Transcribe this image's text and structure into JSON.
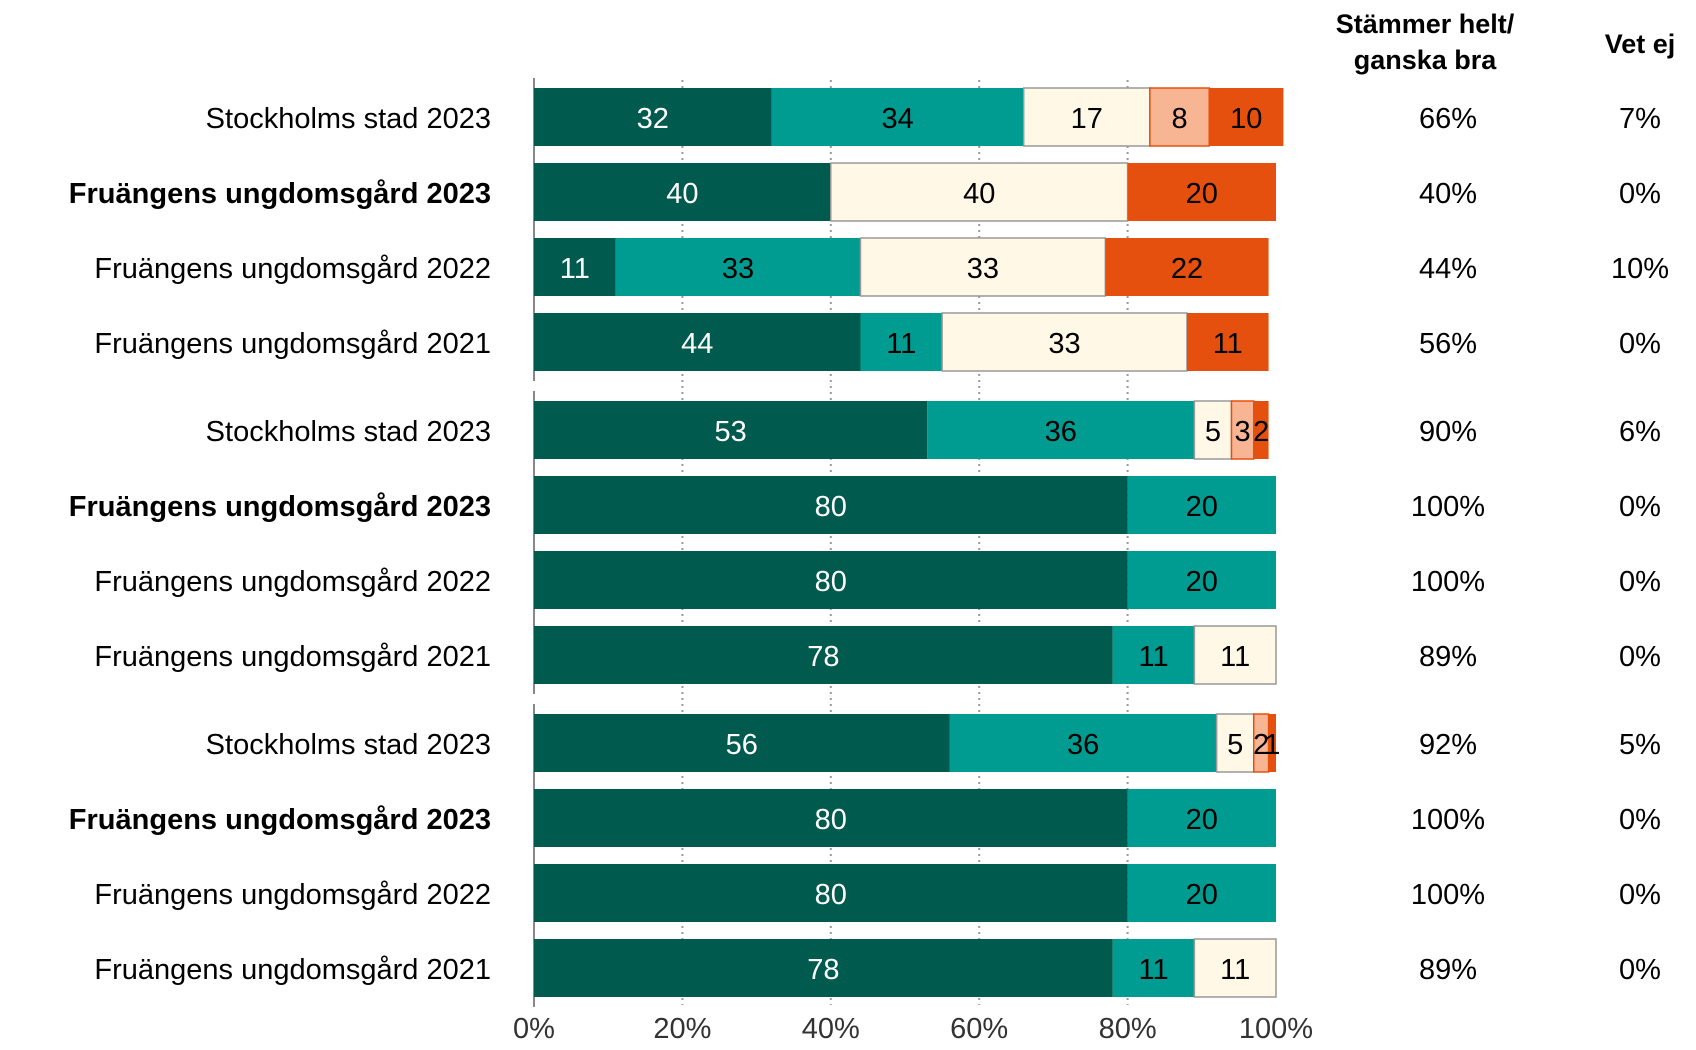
{
  "headers": {
    "col1": "Stämmer helt/ ganska bra",
    "col2": "Vet ej"
  },
  "colors": {
    "seg1": "#005a4e",
    "seg2": "#009b91",
    "seg3": "#fff8e6",
    "seg4": "#f7b593",
    "seg5": "#e5500f",
    "grid": "#999999",
    "axis": "#888888"
  },
  "chart_data": {
    "type": "bar",
    "orientation": "horizontal",
    "stacked": true,
    "xlim": [
      0,
      100
    ],
    "xticks": [
      "0%",
      "20%",
      "40%",
      "60%",
      "80%",
      "100%"
    ],
    "grid": "vertical dotted",
    "groups": [
      {
        "rows": [
          {
            "label": "Stockholms stad 2023",
            "bold": false,
            "segments": [
              32,
              34,
              17,
              8,
              10
            ],
            "col1": "66%",
            "col2": "7%"
          },
          {
            "label": "Fruängens ungdomsgård 2023",
            "bold": true,
            "segments": [
              40,
              0,
              40,
              0,
              20
            ],
            "col1": "40%",
            "col2": "0%"
          },
          {
            "label": "Fruängens ungdomsgård 2022",
            "bold": false,
            "segments": [
              11,
              33,
              33,
              0,
              22
            ],
            "col1": "44%",
            "col2": "10%"
          },
          {
            "label": "Fruängens ungdomsgård 2021",
            "bold": false,
            "segments": [
              44,
              11,
              33,
              0,
              11
            ],
            "col1": "56%",
            "col2": "0%"
          }
        ]
      },
      {
        "rows": [
          {
            "label": "Stockholms stad 2023",
            "bold": false,
            "segments": [
              53,
              36,
              5,
              3,
              2
            ],
            "col1": "90%",
            "col2": "6%"
          },
          {
            "label": "Fruängens ungdomsgård 2023",
            "bold": true,
            "segments": [
              80,
              20,
              0,
              0,
              0
            ],
            "col1": "100%",
            "col2": "0%"
          },
          {
            "label": "Fruängens ungdomsgård 2022",
            "bold": false,
            "segments": [
              80,
              20,
              0,
              0,
              0
            ],
            "col1": "100%",
            "col2": "0%"
          },
          {
            "label": "Fruängens ungdomsgård 2021",
            "bold": false,
            "segments": [
              78,
              11,
              11,
              0,
              0
            ],
            "col1": "89%",
            "col2": "0%"
          }
        ]
      },
      {
        "rows": [
          {
            "label": "Stockholms stad 2023",
            "bold": false,
            "segments": [
              56,
              36,
              5,
              2,
              1
            ],
            "col1": "92%",
            "col2": "5%"
          },
          {
            "label": "Fruängens ungdomsgård 2023",
            "bold": true,
            "segments": [
              80,
              20,
              0,
              0,
              0
            ],
            "col1": "100%",
            "col2": "0%"
          },
          {
            "label": "Fruängens ungdomsgård 2022",
            "bold": false,
            "segments": [
              80,
              20,
              0,
              0,
              0
            ],
            "col1": "100%",
            "col2": "0%"
          },
          {
            "label": "Fruängens ungdomsgård 2021",
            "bold": false,
            "segments": [
              78,
              11,
              11,
              0,
              0
            ],
            "col1": "89%",
            "col2": "0%"
          }
        ]
      }
    ]
  }
}
